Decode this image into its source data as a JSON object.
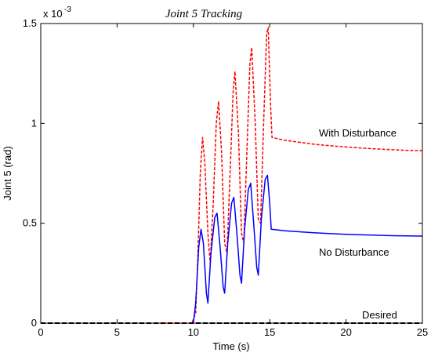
{
  "chart_data": {
    "type": "line",
    "title": "Joint 5 Tracking",
    "xlabel": "Time (s)",
    "ylabel": "Joint 5 (rad)",
    "y_multiplier_label": "x 10",
    "y_multiplier_exponent": "-3",
    "xlim": [
      0,
      25
    ],
    "ylim": [
      0,
      1.5
    ],
    "x_ticks": [
      "0",
      "5",
      "10",
      "15",
      "20",
      "25"
    ],
    "y_ticks": [
      "0",
      "0.5",
      "1",
      "1.5"
    ],
    "grid": false,
    "annotations": [
      "With Disturbance",
      "No Disturbance",
      "Desired"
    ],
    "series": [
      {
        "name": "With Disturbance",
        "color": "#ff0000",
        "style": "dashed",
        "points": [
          [
            7.5,
            0
          ],
          [
            9.9,
            0
          ],
          [
            10.15,
            0.05
          ],
          [
            10.3,
            0.35
          ],
          [
            10.45,
            0.75
          ],
          [
            10.6,
            0.93
          ],
          [
            10.75,
            0.8
          ],
          [
            10.95,
            0.45
          ],
          [
            11.1,
            0.3
          ],
          [
            11.3,
            0.6
          ],
          [
            11.5,
            1.0
          ],
          [
            11.65,
            1.11
          ],
          [
            11.85,
            0.85
          ],
          [
            12.05,
            0.4
          ],
          [
            12.2,
            0.35
          ],
          [
            12.4,
            0.75
          ],
          [
            12.6,
            1.15
          ],
          [
            12.72,
            1.26
          ],
          [
            12.95,
            0.95
          ],
          [
            13.15,
            0.45
          ],
          [
            13.3,
            0.4
          ],
          [
            13.5,
            0.85
          ],
          [
            13.7,
            1.3
          ],
          [
            13.82,
            1.38
          ],
          [
            14.05,
            1.0
          ],
          [
            14.25,
            0.52
          ],
          [
            14.4,
            0.5
          ],
          [
            14.6,
            1.0
          ],
          [
            14.8,
            1.45
          ],
          [
            14.9,
            1.48
          ],
          [
            15.05,
            1.1
          ],
          [
            15.15,
            0.93
          ],
          [
            16,
            0.915
          ],
          [
            17,
            0.905
          ],
          [
            18,
            0.895
          ],
          [
            19,
            0.888
          ],
          [
            20,
            0.882
          ],
          [
            21,
            0.877
          ],
          [
            22,
            0.872
          ],
          [
            23,
            0.868
          ],
          [
            24,
            0.865
          ],
          [
            25,
            0.863
          ]
        ]
      },
      {
        "name": "No Disturbance",
        "color": "#0000ff",
        "style": "solid",
        "points": [
          [
            10,
            0
          ],
          [
            10.15,
            0.1
          ],
          [
            10.35,
            0.38
          ],
          [
            10.5,
            0.47
          ],
          [
            10.65,
            0.4
          ],
          [
            10.85,
            0.15
          ],
          [
            10.95,
            0.1
          ],
          [
            11.15,
            0.35
          ],
          [
            11.4,
            0.53
          ],
          [
            11.55,
            0.55
          ],
          [
            11.75,
            0.38
          ],
          [
            11.95,
            0.18
          ],
          [
            12.05,
            0.15
          ],
          [
            12.25,
            0.4
          ],
          [
            12.5,
            0.6
          ],
          [
            12.65,
            0.63
          ],
          [
            12.85,
            0.45
          ],
          [
            13.05,
            0.24
          ],
          [
            13.15,
            0.2
          ],
          [
            13.35,
            0.47
          ],
          [
            13.6,
            0.67
          ],
          [
            13.75,
            0.7
          ],
          [
            13.95,
            0.5
          ],
          [
            14.15,
            0.28
          ],
          [
            14.25,
            0.24
          ],
          [
            14.45,
            0.52
          ],
          [
            14.7,
            0.72
          ],
          [
            14.85,
            0.74
          ],
          [
            15.0,
            0.6
          ],
          [
            15.1,
            0.47
          ],
          [
            16,
            0.462
          ],
          [
            17,
            0.457
          ],
          [
            18,
            0.452
          ],
          [
            19,
            0.448
          ],
          [
            20,
            0.445
          ],
          [
            21,
            0.442
          ],
          [
            22,
            0.44
          ],
          [
            23,
            0.438
          ],
          [
            24,
            0.437
          ],
          [
            25,
            0.436
          ]
        ]
      },
      {
        "name": "Desired",
        "color": "#000000",
        "style": "dashed",
        "points": [
          [
            0,
            0
          ],
          [
            25,
            0
          ]
        ]
      }
    ]
  }
}
